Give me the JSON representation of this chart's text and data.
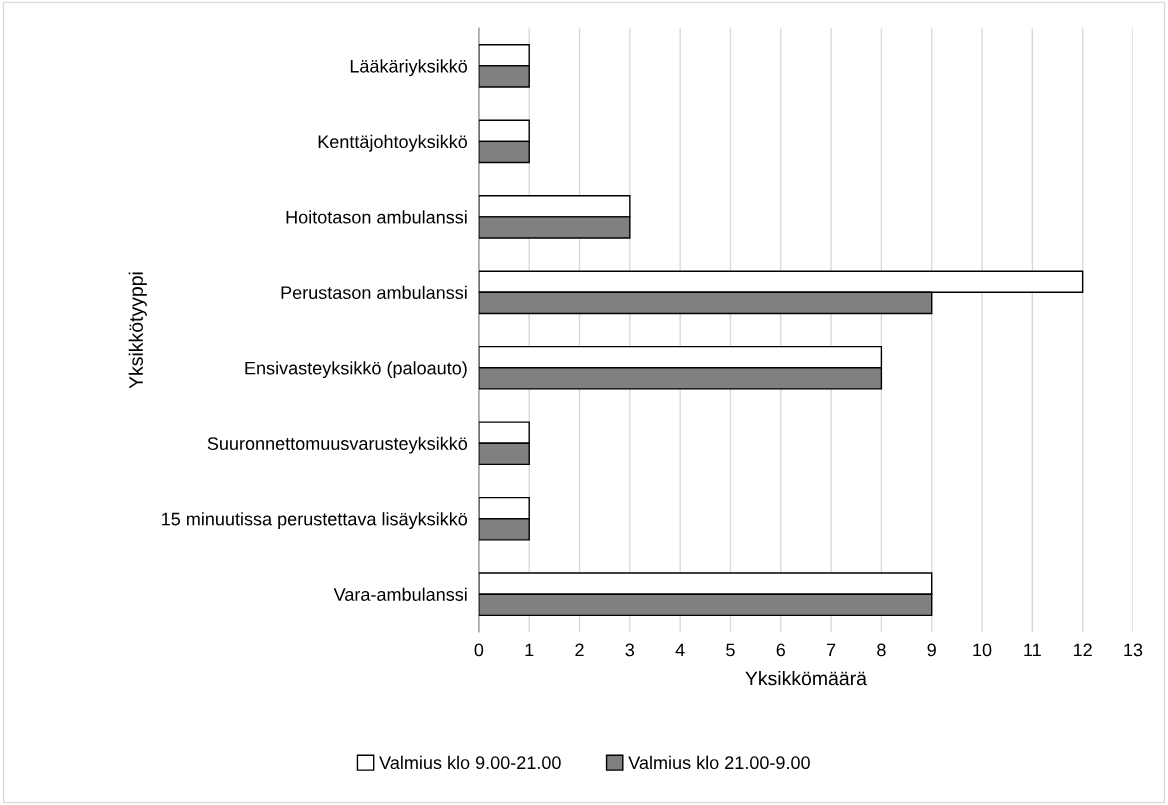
{
  "chart_data": {
    "type": "bar",
    "orientation": "horizontal",
    "xlabel": "Yksikkömäärä",
    "ylabel": "Yksikkötyyppi",
    "categories": [
      "Lääkäriyksikkö",
      "Kenttäjohtoyksikkö",
      "Hoitotason ambulanssi",
      "Perustason ambulanssi",
      "Ensivasteyksikkö (paloauto)",
      "Suuronnettomuusvarusteyksikkö",
      "15 minuutissa perustettava lisäyksikkö",
      "Vara-ambulanssi"
    ],
    "series": [
      {
        "name": "Valmius klo 9.00-21.00",
        "color": "#ffffff",
        "values": [
          1,
          1,
          3,
          12,
          8,
          1,
          1,
          9
        ]
      },
      {
        "name": "Valmius klo 21.00-9.00",
        "color": "#808080",
        "values": [
          1,
          1,
          3,
          9,
          8,
          1,
          1,
          9
        ]
      }
    ],
    "xlim": [
      0,
      13
    ],
    "xticks": [
      0,
      1,
      2,
      3,
      4,
      5,
      6,
      7,
      8,
      9,
      10,
      11,
      12,
      13
    ],
    "grid": "x",
    "legend": "bottom"
  }
}
